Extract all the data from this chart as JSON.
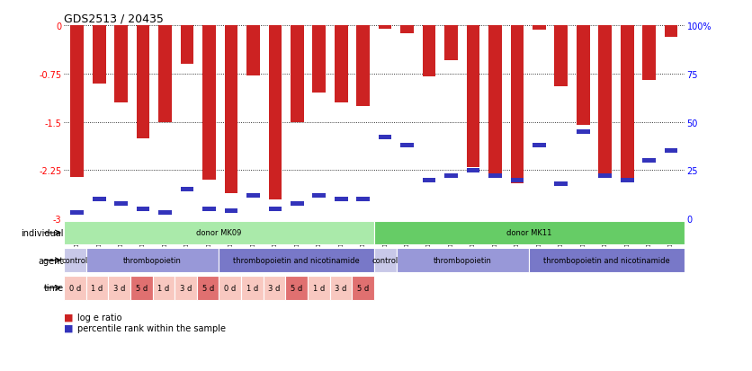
{
  "title": "GDS2513 / 20435",
  "samples": [
    "GSM112271",
    "GSM112272",
    "GSM112273",
    "GSM112274",
    "GSM112275",
    "GSM112276",
    "GSM112277",
    "GSM112278",
    "GSM112279",
    "GSM112280",
    "GSM112281",
    "GSM112282",
    "GSM112283",
    "GSM112284",
    "GSM112285",
    "GSM112286",
    "GSM112287",
    "GSM112288",
    "GSM112289",
    "GSM112290",
    "GSM112291",
    "GSM112292",
    "GSM112293",
    "GSM112294",
    "GSM112295",
    "GSM112296",
    "GSM112297",
    "GSM112298"
  ],
  "log_e_ratio": [
    -2.35,
    -0.9,
    -1.2,
    -1.75,
    -1.5,
    -0.6,
    -2.4,
    -2.6,
    -0.78,
    -2.7,
    -1.5,
    -1.05,
    -1.2,
    -1.25,
    -0.05,
    -0.13,
    -0.8,
    -0.55,
    -2.2,
    -2.3,
    -2.45,
    -0.07,
    -0.95,
    -1.55,
    -2.35,
    -2.4,
    -0.85,
    -0.18
  ],
  "percentile": [
    3,
    10,
    8,
    5,
    3,
    15,
    5,
    4,
    12,
    5,
    8,
    12,
    10,
    10,
    42,
    38,
    20,
    22,
    25,
    22,
    20,
    38,
    18,
    45,
    22,
    20,
    30,
    35
  ],
  "individual_groups": [
    {
      "label": "donor MK09",
      "start": 0,
      "end": 13,
      "color": "#aaeaaa"
    },
    {
      "label": "donor MK11",
      "start": 14,
      "end": 27,
      "color": "#66cc66"
    }
  ],
  "agent_groups": [
    {
      "label": "control",
      "start": 0,
      "end": 0,
      "color": "#c8c8e8"
    },
    {
      "label": "thrombopoietin",
      "start": 1,
      "end": 6,
      "color": "#9898d8"
    },
    {
      "label": "thrombopoietin and nicotinamide",
      "start": 7,
      "end": 13,
      "color": "#7878c8"
    },
    {
      "label": "control",
      "start": 14,
      "end": 14,
      "color": "#c8c8e8"
    },
    {
      "label": "thrombopoietin",
      "start": 15,
      "end": 20,
      "color": "#9898d8"
    },
    {
      "label": "thrombopoietin and nicotinamide",
      "start": 21,
      "end": 27,
      "color": "#7878c8"
    }
  ],
  "time_spans": [
    {
      "label": "0 d",
      "start": 0,
      "end": 0,
      "color": "#f8c8c0"
    },
    {
      "label": "1 d",
      "start": 1,
      "end": 1,
      "color": "#f8c8c0"
    },
    {
      "label": "3 d",
      "start": 2,
      "end": 2,
      "color": "#f8c8c0"
    },
    {
      "label": "5 d",
      "start": 3,
      "end": 3,
      "color": "#e07070"
    },
    {
      "label": "1 d",
      "start": 4,
      "end": 4,
      "color": "#f8c8c0"
    },
    {
      "label": "3 d",
      "start": 5,
      "end": 5,
      "color": "#f8c8c0"
    },
    {
      "label": "5 d",
      "start": 6,
      "end": 6,
      "color": "#e07070"
    },
    {
      "label": "0 d",
      "start": 7,
      "end": 7,
      "color": "#f8c8c0"
    },
    {
      "label": "1 d",
      "start": 8,
      "end": 8,
      "color": "#f8c8c0"
    },
    {
      "label": "3 d",
      "start": 9,
      "end": 9,
      "color": "#f8c8c0"
    },
    {
      "label": "5 d",
      "start": 10,
      "end": 10,
      "color": "#e07070"
    },
    {
      "label": "1 d",
      "start": 11,
      "end": 11,
      "color": "#f8c8c0"
    },
    {
      "label": "3 d",
      "start": 12,
      "end": 12,
      "color": "#f8c8c0"
    },
    {
      "label": "5 d",
      "start": 13,
      "end": 13,
      "color": "#e07070"
    }
  ],
  "bar_color": "#cc2222",
  "percentile_color": "#3333bb",
  "ylim_left": [
    -3.0,
    0.0
  ],
  "ylim_right": [
    0,
    100
  ],
  "yticks_left": [
    0,
    -0.75,
    -1.5,
    -2.25,
    -3
  ],
  "yticks_right": [
    100,
    75,
    50,
    25,
    0
  ],
  "bg_color": "#ffffff",
  "grid_color": "#555555"
}
